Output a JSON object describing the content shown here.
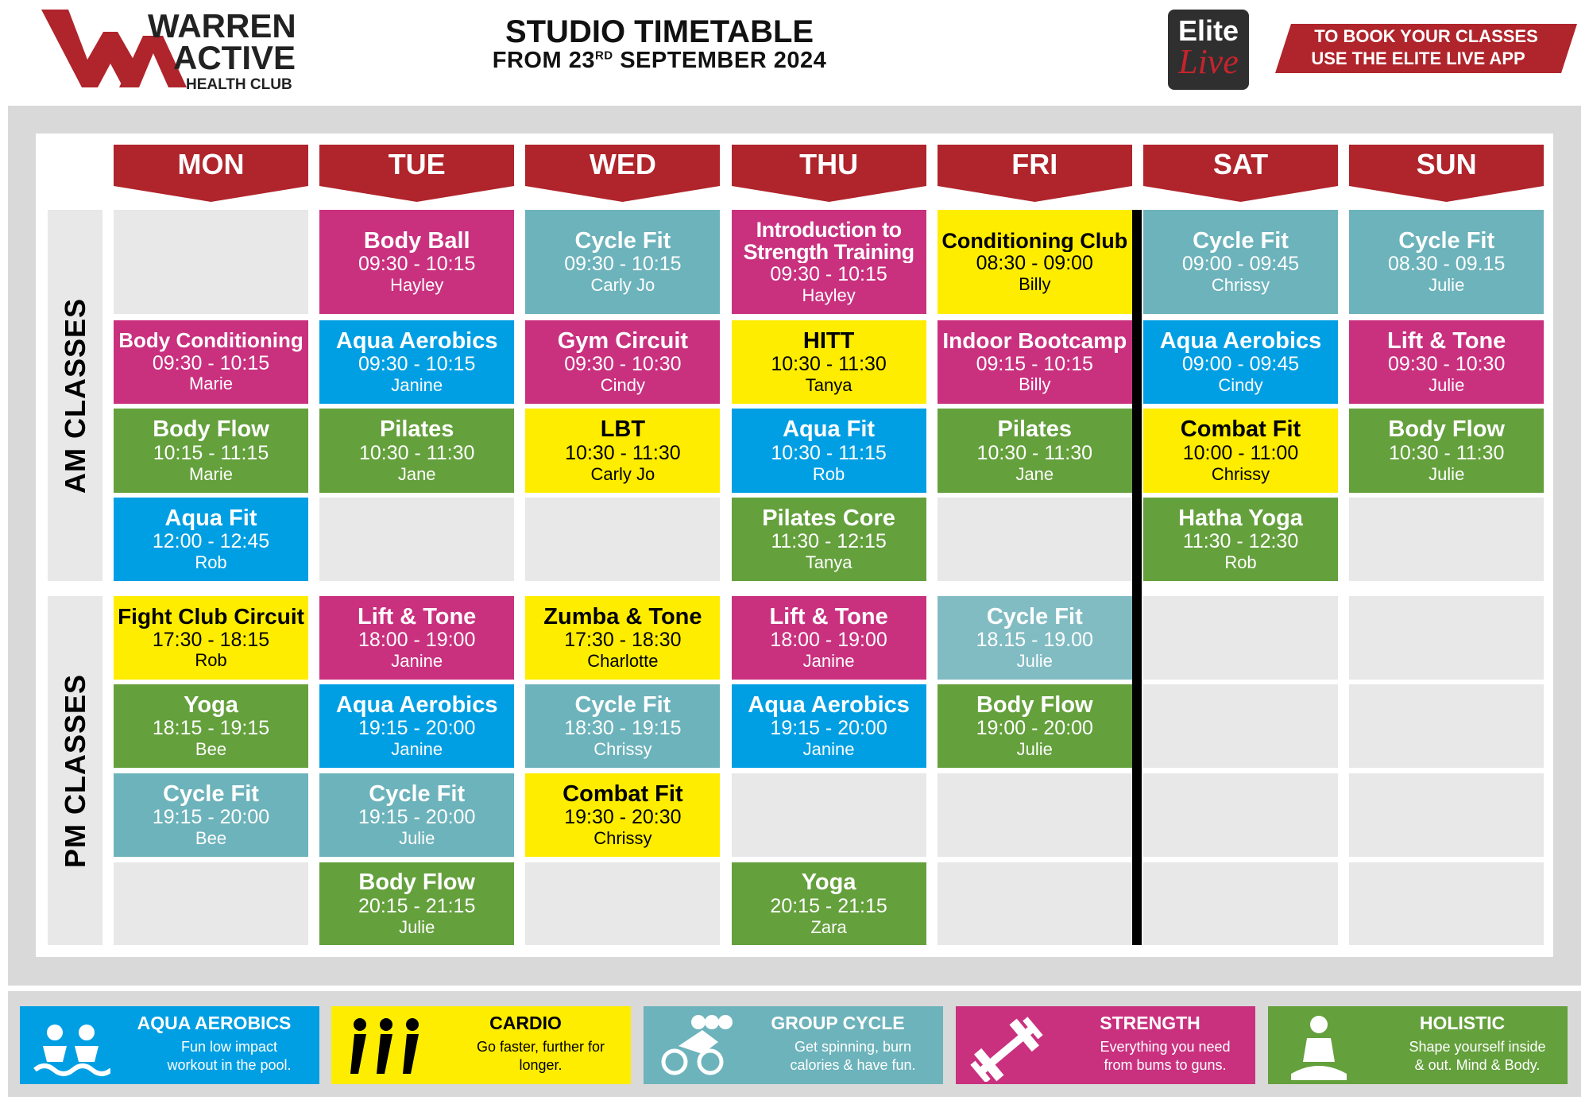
{
  "header": {
    "logo": [
      "WARREN",
      "ACTIVE",
      "HEALTH CLUB"
    ],
    "title": "STUDIO TIMETABLE",
    "subtitle_prefix": "FROM 23",
    "subtitle_sup": "RD",
    "subtitle_suffix": "SEPTEMBER 2024",
    "app_logo": [
      "Elite",
      "Live"
    ],
    "booking": [
      "TO BOOK YOUR CLASSES",
      "USE THE ELITE LIVE APP"
    ]
  },
  "days": [
    "MON",
    "TUE",
    "WED",
    "THU",
    "FRI",
    "SAT",
    "SUN"
  ],
  "sections": [
    {
      "label": "AM CLASSES",
      "rows": [
        [
          null,
          {
            "name": "Body Ball",
            "time": "09:30 - 10:15",
            "instructor": "Hayley",
            "color": "#c9317f"
          },
          {
            "name": "Cycle Fit",
            "time": "09:30 - 10:15",
            "instructor": "Carly Jo",
            "color": "#6db3bb"
          },
          {
            "name": "Introduction to Strength Training",
            "time": "09:30 - 10:15",
            "instructor": "Hayley",
            "color": "#c9317f"
          },
          {
            "name": "Conditioning Club",
            "time": "08:30 - 09:00",
            "instructor": "Billy",
            "color": "#ffed00"
          },
          {
            "name": "Cycle Fit",
            "time": "09:00 - 09:45",
            "instructor": "Chrissy",
            "color": "#6db3bb"
          },
          {
            "name": "Cycle Fit",
            "time": "08.30 - 09.15",
            "instructor": "Julie",
            "color": "#6db3bb"
          }
        ],
        [
          {
            "name": "Body Conditioning",
            "time": "09:30 - 10:15",
            "instructor": "Marie",
            "color": "#c9317f"
          },
          {
            "name": "Aqua Aerobics",
            "time": "09:30 - 10:15",
            "instructor": "Janine",
            "color": "#009fe3"
          },
          {
            "name": "Gym Circuit",
            "time": "09:30 - 10:30",
            "instructor": "Cindy",
            "color": "#c9317f"
          },
          {
            "name": "HITT",
            "time": "10:30 - 11:30",
            "instructor": "Tanya",
            "color": "#ffed00"
          },
          {
            "name": "Indoor Bootcamp",
            "time": "09:15 - 10:15",
            "instructor": "Billy",
            "color": "#c9317f"
          },
          {
            "name": "Aqua Aerobics",
            "time": "09:00 - 09:45",
            "instructor": "Cindy",
            "color": "#009fe3"
          },
          {
            "name": "Lift & Tone",
            "time": "09:30 - 10:30",
            "instructor": "Julie",
            "color": "#c9317f"
          }
        ],
        [
          {
            "name": "Body Flow",
            "time": "10:15 - 11:15",
            "instructor": "Marie",
            "color": "#64a03c"
          },
          {
            "name": "Pilates",
            "time": "10:30 - 11:30",
            "instructor": "Jane",
            "color": "#64a03c"
          },
          {
            "name": "LBT",
            "time": "10:30 - 11:30",
            "instructor": "Carly Jo",
            "color": "#ffed00"
          },
          {
            "name": "Aqua Fit",
            "time": "10:30 - 11:15",
            "instructor": "Rob",
            "color": "#009fe3"
          },
          {
            "name": "Pilates",
            "time": "10:30 - 11:30",
            "instructor": "Jane",
            "color": "#64a03c"
          },
          {
            "name": "Combat Fit",
            "time": "10:00 - 11:00",
            "instructor": "Chrissy",
            "color": "#ffed00"
          },
          {
            "name": "Body Flow",
            "time": "10:30 - 11:30",
            "instructor": "Julie",
            "color": "#64a03c"
          }
        ],
        [
          {
            "name": "Aqua Fit",
            "time": "12:00 - 12:45",
            "instructor": "Rob",
            "color": "#009fe3"
          },
          null,
          null,
          {
            "name": "Pilates Core",
            "time": "11:30 - 12:15",
            "instructor": "Tanya",
            "color": "#64a03c"
          },
          null,
          {
            "name": "Hatha Yoga",
            "time": "11:30 - 12:30",
            "instructor": "Rob",
            "color": "#64a03c"
          },
          null
        ]
      ]
    },
    {
      "label": "PM CLASSES",
      "rows": [
        [
          {
            "name": "Fight Club Circuit",
            "time": "17:30 - 18:15",
            "instructor": "Rob",
            "color": "#ffed00"
          },
          {
            "name": "Lift & Tone",
            "time": "18:00 - 19:00",
            "instructor": "Janine",
            "color": "#c9317f"
          },
          {
            "name": "Zumba & Tone",
            "time": "17:30 - 18:30",
            "instructor": "Charlotte",
            "color": "#ffed00"
          },
          {
            "name": "Lift & Tone",
            "time": "18:00 - 19:00",
            "instructor": "Janine",
            "color": "#c9317f"
          },
          {
            "name": "Cycle Fit",
            "time": "18.15 - 19.00",
            "instructor": "Julie",
            "color": "#82bcc3"
          },
          null,
          null
        ],
        [
          {
            "name": "Yoga",
            "time": "18:15 - 19:15",
            "instructor": "Bee",
            "color": "#64a03c"
          },
          {
            "name": "Aqua Aerobics",
            "time": "19:15 - 20:00",
            "instructor": "Janine",
            "color": "#009fe3"
          },
          {
            "name": "Cycle Fit",
            "time": "18:30 - 19:15",
            "instructor": "Chrissy",
            "color": "#6db3bb"
          },
          {
            "name": "Aqua Aerobics",
            "time": "19:15 - 20:00",
            "instructor": "Janine",
            "color": "#009fe3"
          },
          {
            "name": "Body Flow",
            "time": "19:00 - 20:00",
            "instructor": "Julie",
            "color": "#64a03c"
          },
          null,
          null
        ],
        [
          {
            "name": "Cycle Fit",
            "time": "19:15 - 20:00",
            "instructor": "Bee",
            "color": "#6db3bb"
          },
          {
            "name": "Cycle Fit",
            "time": "19:15 - 20:00",
            "instructor": "Julie",
            "color": "#6db3bb"
          },
          {
            "name": "Combat Fit",
            "time": "19:30 - 20:30",
            "instructor": "Chrissy",
            "color": "#ffed00"
          },
          null,
          null,
          null,
          null
        ],
        [
          null,
          {
            "name": "Body Flow",
            "time": "20:15 - 21:15",
            "instructor": "Julie",
            "color": "#64a03c"
          },
          null,
          {
            "name": "Yoga",
            "time": "20:15 - 21:15",
            "instructor": "Zara",
            "color": "#64a03c"
          },
          null,
          null,
          null
        ]
      ]
    }
  ],
  "legend": [
    {
      "title": "AQUA AEROBICS",
      "description": "Fun low impact workout in the pool.",
      "color": "#009fe3"
    },
    {
      "title": "CARDIO",
      "description": "Go faster, further for longer.",
      "color": "#ffed00"
    },
    {
      "title": "GROUP CYCLE",
      "description": "Get spinning, burn calories & have fun.",
      "color": "#6db3bb"
    },
    {
      "title": "STRENGTH",
      "description": "Everything you need from bums to guns.",
      "color": "#c9317f"
    },
    {
      "title": "HOLISTIC",
      "description": "Shape yourself inside & out. Mind & Body.",
      "color": "#64a03c"
    }
  ]
}
